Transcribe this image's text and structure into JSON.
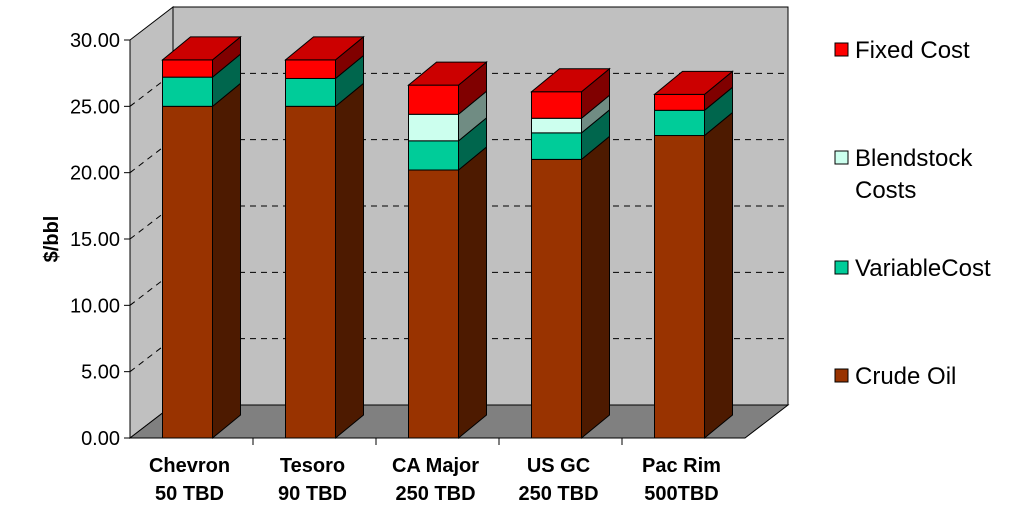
{
  "chart_data": {
    "type": "bar",
    "stacked": true,
    "three_d": true,
    "ylabel": "$/bbl",
    "ylim": [
      0,
      30
    ],
    "yticks": [
      "0.00",
      "5.00",
      "10.00",
      "15.00",
      "20.00",
      "25.00",
      "30.00"
    ],
    "categories": [
      [
        "Chevron",
        "50 TBD"
      ],
      [
        "Tesoro",
        "90 TBD"
      ],
      [
        "CA Major",
        "250 TBD"
      ],
      [
        "US GC",
        "250 TBD"
      ],
      [
        "Pac Rim",
        "500TBD"
      ]
    ],
    "series": [
      {
        "name": "Crude Oil",
        "color": "#993300",
        "values": [
          25.0,
          25.0,
          20.2,
          21.0,
          22.8
        ]
      },
      {
        "name": "VariableCost",
        "color": "#00CC99",
        "values": [
          2.2,
          2.1,
          2.2,
          2.0,
          1.9
        ]
      },
      {
        "name": "Blendstock Costs",
        "color": "#CCFFEE",
        "values": [
          0,
          0,
          2.0,
          1.1,
          0
        ]
      },
      {
        "name": "Fixed Cost",
        "color": "#FF0000",
        "values": [
          1.3,
          1.4,
          2.2,
          2.0,
          1.2
        ]
      }
    ],
    "legend": {
      "position": "right",
      "order": [
        "Fixed Cost",
        "Blendstock Costs",
        "VariableCost",
        "Crude Oil"
      ],
      "lines": [
        [
          "Fixed Cost"
        ],
        [
          "Blendstock",
          "Costs"
        ],
        [
          "VariableCost"
        ],
        [
          "Crude Oil"
        ]
      ]
    },
    "grid": true
  }
}
